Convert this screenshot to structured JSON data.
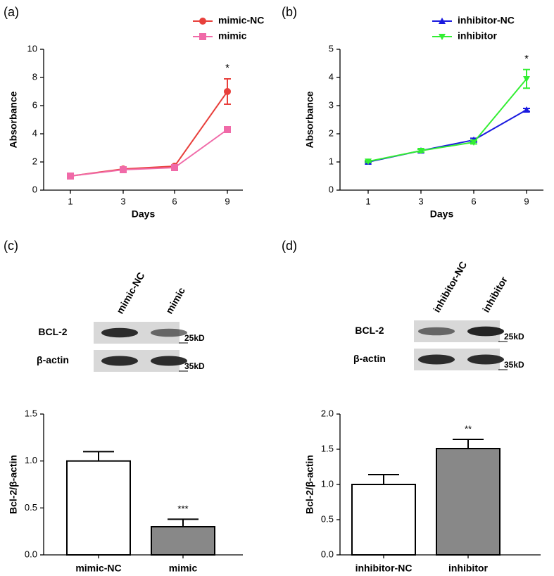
{
  "chart_data": [
    {
      "type": "line",
      "panel_label": "(a)",
      "x_label": "Days",
      "y_label": "Absorbance",
      "categories": [
        "1",
        "3",
        "6",
        "9"
      ],
      "series": [
        {
          "name": "mimic-NC",
          "color": "#e8403c",
          "marker": "circle",
          "values": [
            1.0,
            1.5,
            1.7,
            7.0
          ],
          "errors": [
            0.05,
            0.08,
            0.08,
            0.9
          ]
        },
        {
          "name": "mimic",
          "color": "#f06aa8",
          "marker": "square",
          "values": [
            1.0,
            1.45,
            1.6,
            4.3
          ],
          "errors": [
            0.05,
            0.08,
            0.08,
            0.2
          ]
        }
      ],
      "ylim": [
        0,
        10
      ],
      "yticks": [
        0,
        2,
        4,
        6,
        8,
        10
      ],
      "annotation": {
        "text": "*",
        "category": "9"
      }
    },
    {
      "type": "line",
      "panel_label": "(b)",
      "x_label": "Days",
      "y_label": "Absorbance",
      "categories": [
        "1",
        "3",
        "6",
        "9"
      ],
      "series": [
        {
          "name": "inhibitor-NC",
          "color": "#1a1adf",
          "marker": "triangle-up",
          "values": [
            1.0,
            1.4,
            1.78,
            2.85
          ],
          "errors": [
            0.03,
            0.05,
            0.06,
            0.05
          ]
        },
        {
          "name": "inhibitor",
          "color": "#33ee33",
          "marker": "triangle-down",
          "values": [
            1.02,
            1.4,
            1.7,
            3.95
          ],
          "errors": [
            0.03,
            0.05,
            0.06,
            0.33
          ]
        }
      ],
      "ylim": [
        0,
        5
      ],
      "yticks": [
        0,
        1,
        2,
        3,
        4,
        5
      ],
      "annotation": {
        "text": "*",
        "category": "9"
      }
    },
    {
      "type": "bar",
      "panel_label": "(c)",
      "y_label": "Bcl-2/β-actin",
      "blot": {
        "lanes": [
          "mimic-NC",
          "mimic"
        ],
        "rows": [
          "BCL-2",
          "β-actin"
        ],
        "markers": [
          "25kD",
          "35kD"
        ]
      },
      "categories": [
        "mimic-NC",
        "mimic"
      ],
      "values": [
        1.0,
        0.3
      ],
      "errors": [
        0.1,
        0.08
      ],
      "colors": [
        "#ffffff",
        "#888888"
      ],
      "ylim": [
        0,
        1.5
      ],
      "yticks": [
        {
          "value": 0,
          "label": "0.0"
        },
        0.5,
        {
          "value": 1,
          "label": "1.0"
        },
        1.5
      ],
      "annotation": {
        "text": "***",
        "category": "mimic"
      }
    },
    {
      "type": "bar",
      "panel_label": "(d)",
      "y_label": "Bcl-2/β-actin",
      "blot": {
        "lanes": [
          "inhibitor-NC",
          "inhibitor"
        ],
        "rows": [
          "BCL-2",
          "β-actin"
        ],
        "markers": [
          "25kD",
          "35kD"
        ]
      },
      "categories": [
        "inhibitor-NC",
        "inhibitor"
      ],
      "values": [
        1.0,
        1.51
      ],
      "errors": [
        0.14,
        0.13
      ],
      "colors": [
        "#ffffff",
        "#888888"
      ],
      "ylim": [
        0,
        2
      ],
      "yticks": [
        {
          "value": 0,
          "label": "0.0"
        },
        0.5,
        {
          "value": 1,
          "label": "1.0"
        },
        1.5,
        {
          "value": 2,
          "label": "2.0"
        }
      ],
      "annotation": {
        "text": "**",
        "category": "inhibitor"
      }
    }
  ]
}
